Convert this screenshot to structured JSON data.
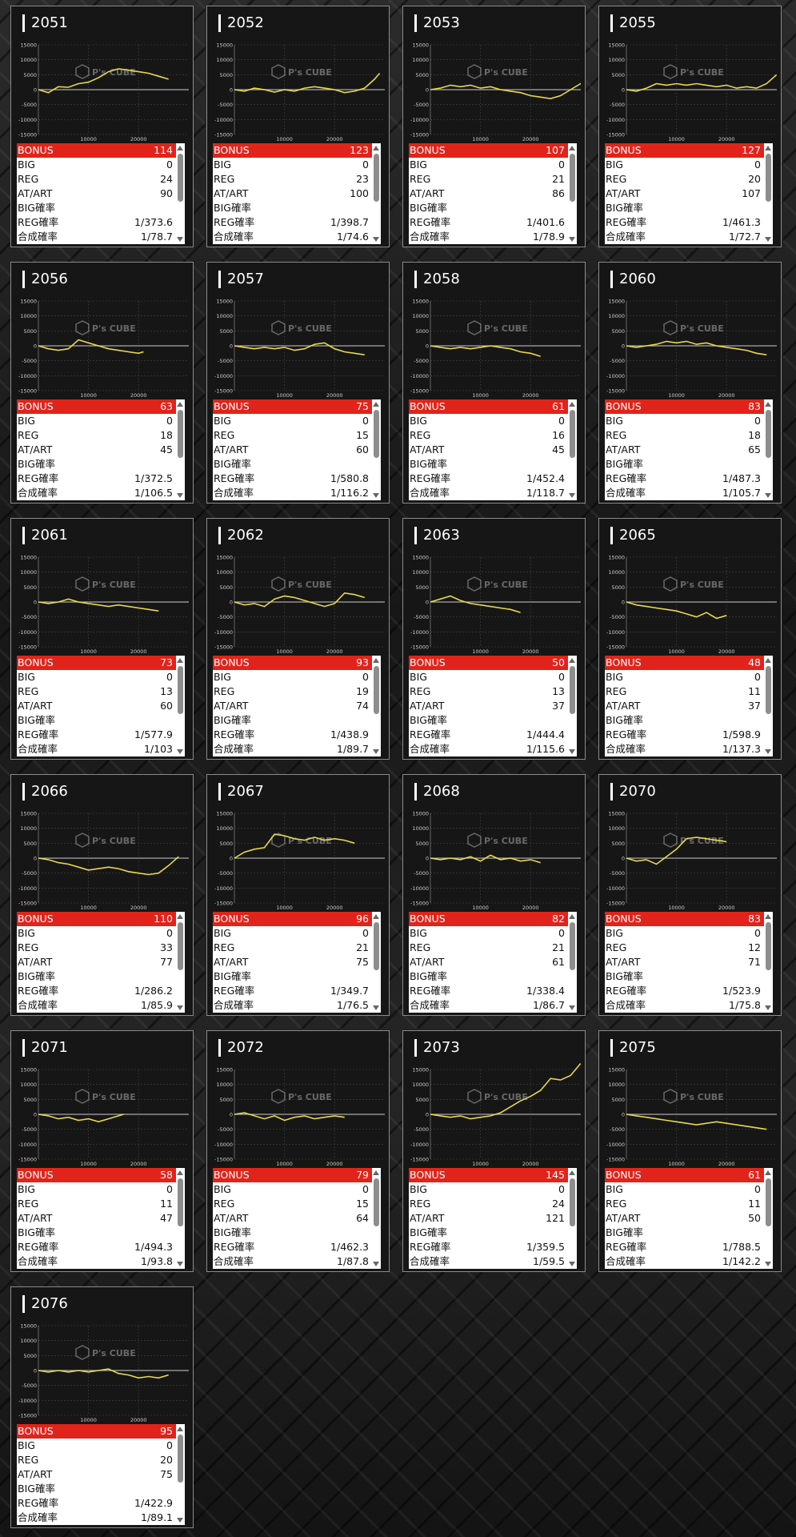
{
  "labels": {
    "bonus": "BONUS",
    "big": "BIG",
    "reg": "REG",
    "at_art": "AT/ART",
    "big_rate": "BIG確率",
    "reg_rate": "REG確率",
    "total_rate": "合成確率"
  },
  "watermark": {
    "brand": "P's CUBE"
  },
  "chart_axes": {
    "y_ticks": [
      "15000",
      "10000",
      "5000",
      "0",
      "-5000",
      "-10000",
      "-15000"
    ],
    "x_ticks": [
      "10000",
      "20000"
    ]
  },
  "colors": {
    "bonus_bar": "#e0241b",
    "line": "#e8d84a",
    "zero_line": "#aaaaaa"
  },
  "machines": [
    {
      "id": "2051",
      "bonus": "114",
      "big": "0",
      "reg": "24",
      "at_art": "90",
      "big_rate": "",
      "reg_rate": "1/373.6",
      "total_rate": "1/78.7",
      "chart_data": {
        "type": "line",
        "x": [
          0,
          2000,
          4000,
          6000,
          8000,
          10000,
          12000,
          14000,
          16000,
          18000,
          20000,
          22000,
          24000,
          26000
        ],
        "y": [
          0,
          -1000,
          1000,
          800,
          2000,
          2500,
          4000,
          6000,
          7000,
          6500,
          6000,
          5500,
          4500,
          3500
        ]
      }
    },
    {
      "id": "2052",
      "bonus": "123",
      "big": "0",
      "reg": "23",
      "at_art": "100",
      "big_rate": "",
      "reg_rate": "1/398.7",
      "total_rate": "1/74.6",
      "chart_data": {
        "type": "line",
        "x": [
          0,
          2000,
          4000,
          6000,
          8000,
          10000,
          12000,
          14000,
          16000,
          18000,
          20000,
          22000,
          24000,
          26000,
          28000,
          29000
        ],
        "y": [
          0,
          -500,
          500,
          0,
          -800,
          0,
          -500,
          500,
          1000,
          500,
          0,
          -1000,
          -500,
          500,
          3500,
          5500
        ]
      }
    },
    {
      "id": "2053",
      "bonus": "107",
      "big": "0",
      "reg": "21",
      "at_art": "86",
      "big_rate": "",
      "reg_rate": "1/401.6",
      "total_rate": "1/78.9",
      "chart_data": {
        "type": "line",
        "x": [
          0,
          2000,
          4000,
          6000,
          8000,
          10000,
          12000,
          14000,
          16000,
          18000,
          20000,
          22000,
          24000,
          26000,
          28000,
          30000,
          32000
        ],
        "y": [
          0,
          500,
          1500,
          1000,
          1500,
          500,
          1000,
          0,
          -500,
          -1000,
          -2000,
          -2500,
          -3000,
          -2000,
          0,
          2000,
          4000
        ]
      }
    },
    {
      "id": "2055",
      "bonus": "127",
      "big": "0",
      "reg": "20",
      "at_art": "107",
      "big_rate": "",
      "reg_rate": "1/461.3",
      "total_rate": "1/72.7",
      "chart_data": {
        "type": "line",
        "x": [
          0,
          2000,
          4000,
          6000,
          8000,
          10000,
          12000,
          14000,
          16000,
          18000,
          20000,
          22000,
          24000,
          26000,
          28000,
          30000
        ],
        "y": [
          0,
          -500,
          500,
          2000,
          1500,
          2000,
          1500,
          2000,
          1500,
          1000,
          1500,
          500,
          1000,
          500,
          2000,
          5000
        ]
      }
    },
    {
      "id": "2056",
      "bonus": "63",
      "big": "0",
      "reg": "18",
      "at_art": "45",
      "big_rate": "",
      "reg_rate": "1/372.5",
      "total_rate": "1/106.5",
      "chart_data": {
        "type": "line",
        "x": [
          0,
          2000,
          4000,
          6000,
          8000,
          10000,
          12000,
          14000,
          16000,
          18000,
          20000,
          21000
        ],
        "y": [
          0,
          -1000,
          -1500,
          -1000,
          2000,
          1000,
          0,
          -1000,
          -1500,
          -2000,
          -2500,
          -2000
        ]
      }
    },
    {
      "id": "2057",
      "bonus": "75",
      "big": "0",
      "reg": "15",
      "at_art": "60",
      "big_rate": "",
      "reg_rate": "1/580.8",
      "total_rate": "1/116.2",
      "chart_data": {
        "type": "line",
        "x": [
          0,
          2000,
          4000,
          6000,
          8000,
          10000,
          12000,
          14000,
          16000,
          18000,
          20000,
          22000,
          24000,
          26000
        ],
        "y": [
          0,
          -500,
          -1000,
          -500,
          -1000,
          -500,
          -1500,
          -1000,
          500,
          1000,
          -1000,
          -2000,
          -2500,
          -3000
        ]
      }
    },
    {
      "id": "2058",
      "bonus": "61",
      "big": "0",
      "reg": "16",
      "at_art": "45",
      "big_rate": "",
      "reg_rate": "1/452.4",
      "total_rate": "1/118.7",
      "chart_data": {
        "type": "line",
        "x": [
          0,
          2000,
          4000,
          6000,
          8000,
          10000,
          12000,
          14000,
          16000,
          18000,
          20000,
          22000
        ],
        "y": [
          0,
          -500,
          -1000,
          -500,
          -1000,
          -500,
          0,
          -500,
          -1000,
          -2000,
          -2500,
          -3500
        ]
      }
    },
    {
      "id": "2060",
      "bonus": "83",
      "big": "0",
      "reg": "18",
      "at_art": "65",
      "big_rate": "",
      "reg_rate": "1/487.3",
      "total_rate": "1/105.7",
      "chart_data": {
        "type": "line",
        "x": [
          0,
          2000,
          4000,
          6000,
          8000,
          10000,
          12000,
          14000,
          16000,
          18000,
          20000,
          22000,
          24000,
          26000,
          28000
        ],
        "y": [
          0,
          -500,
          0,
          500,
          1500,
          1000,
          1500,
          500,
          1000,
          0,
          -500,
          -1000,
          -1500,
          -2500,
          -3000
        ]
      }
    },
    {
      "id": "2061",
      "bonus": "73",
      "big": "0",
      "reg": "13",
      "at_art": "60",
      "big_rate": "",
      "reg_rate": "1/577.9",
      "total_rate": "1/103",
      "chart_data": {
        "type": "line",
        "x": [
          0,
          2000,
          4000,
          6000,
          8000,
          10000,
          12000,
          14000,
          16000,
          18000,
          20000,
          22000,
          24000
        ],
        "y": [
          0,
          -500,
          0,
          1000,
          0,
          -500,
          -1000,
          -1500,
          -1000,
          -1500,
          -2000,
          -2500,
          -3000
        ]
      }
    },
    {
      "id": "2062",
      "bonus": "93",
      "big": "0",
      "reg": "19",
      "at_art": "74",
      "big_rate": "",
      "reg_rate": "1/438.9",
      "total_rate": "1/89.7",
      "chart_data": {
        "type": "line",
        "x": [
          0,
          2000,
          4000,
          6000,
          8000,
          10000,
          12000,
          14000,
          16000,
          18000,
          20000,
          22000,
          24000,
          26000
        ],
        "y": [
          0,
          -1000,
          -500,
          -1500,
          1000,
          2000,
          1500,
          500,
          -500,
          -1500,
          -500,
          3000,
          2500,
          1500
        ]
      }
    },
    {
      "id": "2063",
      "bonus": "50",
      "big": "0",
      "reg": "13",
      "at_art": "37",
      "big_rate": "",
      "reg_rate": "1/444.4",
      "total_rate": "1/115.6",
      "chart_data": {
        "type": "line",
        "x": [
          0,
          2000,
          4000,
          6000,
          8000,
          10000,
          12000,
          14000,
          16000,
          18000
        ],
        "y": [
          0,
          1000,
          2000,
          500,
          -500,
          -1000,
          -1500,
          -2000,
          -2500,
          -3500
        ]
      }
    },
    {
      "id": "2065",
      "bonus": "48",
      "big": "0",
      "reg": "11",
      "at_art": "37",
      "big_rate": "",
      "reg_rate": "1/598.9",
      "total_rate": "1/137.3",
      "chart_data": {
        "type": "line",
        "x": [
          0,
          2000,
          4000,
          6000,
          8000,
          10000,
          12000,
          14000,
          16000,
          18000,
          20000
        ],
        "y": [
          0,
          -1000,
          -1500,
          -2000,
          -2500,
          -3000,
          -4000,
          -5000,
          -3500,
          -5500,
          -4500
        ]
      }
    },
    {
      "id": "2066",
      "bonus": "110",
      "big": "0",
      "reg": "33",
      "at_art": "77",
      "big_rate": "",
      "reg_rate": "1/286.2",
      "total_rate": "1/85.9",
      "chart_data": {
        "type": "line",
        "x": [
          0,
          2000,
          4000,
          6000,
          8000,
          10000,
          12000,
          14000,
          16000,
          18000,
          20000,
          22000,
          24000,
          26000,
          28000
        ],
        "y": [
          0,
          -500,
          -1500,
          -2000,
          -3000,
          -4000,
          -3500,
          -3000,
          -3500,
          -4500,
          -5000,
          -5500,
          -5000,
          -2500,
          500
        ]
      }
    },
    {
      "id": "2067",
      "bonus": "96",
      "big": "0",
      "reg": "21",
      "at_art": "75",
      "big_rate": "",
      "reg_rate": "1/349.7",
      "total_rate": "1/76.5",
      "chart_data": {
        "type": "line",
        "x": [
          0,
          2000,
          4000,
          6000,
          8000,
          10000,
          12000,
          14000,
          16000,
          18000,
          20000,
          22000,
          24000
        ],
        "y": [
          0,
          2000,
          3000,
          3500,
          8000,
          7500,
          6500,
          6000,
          7000,
          6000,
          6500,
          6000,
          5000
        ]
      }
    },
    {
      "id": "2068",
      "bonus": "82",
      "big": "0",
      "reg": "21",
      "at_art": "61",
      "big_rate": "",
      "reg_rate": "1/338.4",
      "total_rate": "1/86.7",
      "chart_data": {
        "type": "line",
        "x": [
          0,
          2000,
          4000,
          6000,
          8000,
          10000,
          12000,
          14000,
          16000,
          18000,
          20000,
          22000
        ],
        "y": [
          0,
          -500,
          0,
          -500,
          500,
          -1000,
          1000,
          -500,
          0,
          -1000,
          -500,
          -1500
        ]
      }
    },
    {
      "id": "2070",
      "bonus": "83",
      "big": "0",
      "reg": "12",
      "at_art": "71",
      "big_rate": "",
      "reg_rate": "1/523.9",
      "total_rate": "1/75.8",
      "chart_data": {
        "type": "line",
        "x": [
          0,
          2000,
          4000,
          6000,
          8000,
          10000,
          12000,
          14000,
          16000,
          18000,
          20000
        ],
        "y": [
          0,
          -1000,
          -500,
          -2000,
          500,
          3000,
          6500,
          7000,
          6500,
          6000,
          5500
        ]
      }
    },
    {
      "id": "2071",
      "bonus": "58",
      "big": "0",
      "reg": "11",
      "at_art": "47",
      "big_rate": "",
      "reg_rate": "1/494.3",
      "total_rate": "1/93.8",
      "chart_data": {
        "type": "line",
        "x": [
          0,
          2000,
          4000,
          6000,
          8000,
          10000,
          12000,
          14000,
          16000,
          17000
        ],
        "y": [
          0,
          -500,
          -1500,
          -1000,
          -2000,
          -1500,
          -2500,
          -1500,
          -500,
          0
        ]
      }
    },
    {
      "id": "2072",
      "bonus": "79",
      "big": "0",
      "reg": "15",
      "at_art": "64",
      "big_rate": "",
      "reg_rate": "1/462.3",
      "total_rate": "1/87.8",
      "chart_data": {
        "type": "line",
        "x": [
          0,
          2000,
          4000,
          6000,
          8000,
          10000,
          12000,
          14000,
          16000,
          18000,
          20000,
          22000
        ],
        "y": [
          0,
          500,
          -500,
          -1500,
          -500,
          -2000,
          -1000,
          -500,
          -1500,
          -1000,
          -500,
          -1000
        ]
      }
    },
    {
      "id": "2073",
      "bonus": "145",
      "big": "0",
      "reg": "24",
      "at_art": "121",
      "big_rate": "",
      "reg_rate": "1/359.5",
      "total_rate": "1/59.5",
      "chart_data": {
        "type": "line",
        "x": [
          0,
          2000,
          4000,
          6000,
          8000,
          10000,
          12000,
          14000,
          16000,
          18000,
          20000,
          22000,
          24000,
          26000,
          28000,
          30000
        ],
        "y": [
          0,
          -500,
          -1000,
          -500,
          -1500,
          -1000,
          -500,
          500,
          2500,
          4500,
          6000,
          8000,
          12000,
          11500,
          13000,
          17000
        ]
      }
    },
    {
      "id": "2075",
      "bonus": "61",
      "big": "0",
      "reg": "11",
      "at_art": "50",
      "big_rate": "",
      "reg_rate": "1/788.5",
      "total_rate": "1/142.2",
      "chart_data": {
        "type": "line",
        "x": [
          0,
          2000,
          4000,
          6000,
          8000,
          10000,
          12000,
          14000,
          16000,
          18000,
          20000,
          22000,
          24000,
          26000,
          28000
        ],
        "y": [
          0,
          -500,
          -1000,
          -1500,
          -2000,
          -2500,
          -3000,
          -3500,
          -3000,
          -2500,
          -3000,
          -3500,
          -4000,
          -4500,
          -5000
        ]
      }
    },
    {
      "id": "2076",
      "bonus": "95",
      "big": "0",
      "reg": "20",
      "at_art": "75",
      "big_rate": "",
      "reg_rate": "1/422.9",
      "total_rate": "1/89.1",
      "chart_data": {
        "type": "line",
        "x": [
          0,
          2000,
          4000,
          6000,
          8000,
          10000,
          12000,
          14000,
          16000,
          18000,
          20000,
          22000,
          24000,
          26000
        ],
        "y": [
          0,
          -500,
          0,
          -500,
          0,
          -500,
          0,
          500,
          -1000,
          -1500,
          -2500,
          -2000,
          -2500,
          -1500
        ]
      }
    }
  ]
}
